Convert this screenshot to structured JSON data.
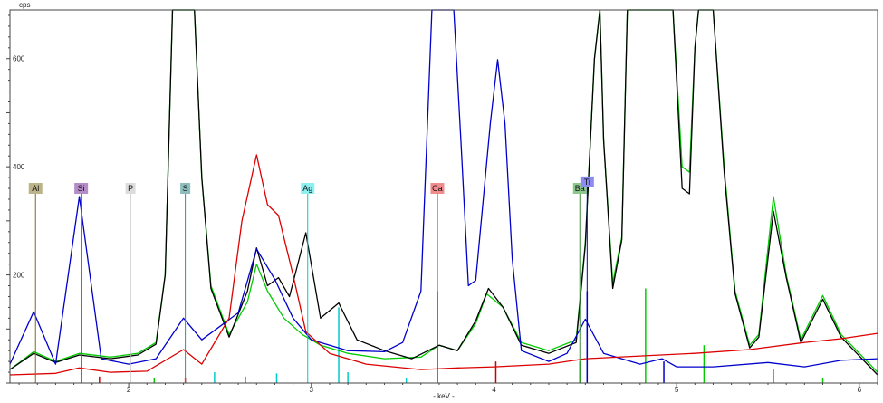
{
  "chart_data": {
    "type": "line",
    "units": {
      "y": "cps",
      "x": "- keV -"
    },
    "xlim": [
      1.35,
      6.1
    ],
    "ylim": [
      0,
      690
    ],
    "x_ticks": [
      {
        "v": 2,
        "t": "2"
      },
      {
        "v": 3,
        "t": "3"
      },
      {
        "v": 4,
        "t": "4"
      },
      {
        "v": 5,
        "t": "5"
      },
      {
        "v": 6,
        "t": "6"
      }
    ],
    "y_ticks": [
      {
        "v": 200,
        "t": "200"
      },
      {
        "v": 400,
        "t": "400"
      },
      {
        "v": 600,
        "t": "600"
      }
    ],
    "series": [
      {
        "color": "#00cc00",
        "points": [
          [
            1.35,
            25
          ],
          [
            1.48,
            58
          ],
          [
            1.6,
            40
          ],
          [
            1.73,
            55
          ],
          [
            1.9,
            48
          ],
          [
            2.05,
            55
          ],
          [
            2.15,
            75
          ],
          [
            2.2,
            200
          ],
          [
            2.24,
            690
          ],
          [
            2.36,
            690
          ],
          [
            2.4,
            380
          ],
          [
            2.45,
            180
          ],
          [
            2.55,
            90
          ],
          [
            2.65,
            150
          ],
          [
            2.7,
            220
          ],
          [
            2.76,
            170
          ],
          [
            2.85,
            120
          ],
          [
            2.95,
            90
          ],
          [
            3.05,
            70
          ],
          [
            3.2,
            55
          ],
          [
            3.4,
            45
          ],
          [
            3.6,
            48
          ],
          [
            3.7,
            70
          ],
          [
            3.8,
            60
          ],
          [
            3.9,
            110
          ],
          [
            3.96,
            165
          ],
          [
            4.05,
            140
          ],
          [
            4.15,
            75
          ],
          [
            4.3,
            60
          ],
          [
            4.45,
            80
          ],
          [
            4.5,
            260
          ],
          [
            4.55,
            600
          ],
          [
            4.58,
            690
          ],
          [
            4.6,
            450
          ],
          [
            4.65,
            185
          ],
          [
            4.7,
            270
          ],
          [
            4.73,
            690
          ],
          [
            4.98,
            690
          ],
          [
            5.03,
            400
          ],
          [
            5.07,
            390
          ],
          [
            5.1,
            620
          ],
          [
            5.12,
            690
          ],
          [
            5.2,
            690
          ],
          [
            5.26,
            400
          ],
          [
            5.32,
            170
          ],
          [
            5.4,
            70
          ],
          [
            5.45,
            90
          ],
          [
            5.53,
            345
          ],
          [
            5.6,
            200
          ],
          [
            5.68,
            80
          ],
          [
            5.8,
            162
          ],
          [
            5.9,
            90
          ],
          [
            6.1,
            20
          ]
        ]
      },
      {
        "color": "#000000",
        "points": [
          [
            1.35,
            25
          ],
          [
            1.48,
            55
          ],
          [
            1.6,
            38
          ],
          [
            1.73,
            52
          ],
          [
            1.9,
            45
          ],
          [
            2.05,
            52
          ],
          [
            2.15,
            72
          ],
          [
            2.2,
            200
          ],
          [
            2.24,
            690
          ],
          [
            2.36,
            690
          ],
          [
            2.4,
            380
          ],
          [
            2.45,
            175
          ],
          [
            2.55,
            85
          ],
          [
            2.65,
            170
          ],
          [
            2.7,
            250
          ],
          [
            2.76,
            180
          ],
          [
            2.82,
            195
          ],
          [
            2.88,
            160
          ],
          [
            2.97,
            278
          ],
          [
            3.05,
            120
          ],
          [
            3.15,
            148
          ],
          [
            3.25,
            80
          ],
          [
            3.4,
            60
          ],
          [
            3.55,
            45
          ],
          [
            3.7,
            70
          ],
          [
            3.8,
            60
          ],
          [
            3.9,
            115
          ],
          [
            3.97,
            175
          ],
          [
            4.05,
            140
          ],
          [
            4.15,
            70
          ],
          [
            4.3,
            55
          ],
          [
            4.45,
            75
          ],
          [
            4.5,
            255
          ],
          [
            4.55,
            600
          ],
          [
            4.58,
            690
          ],
          [
            4.6,
            450
          ],
          [
            4.65,
            175
          ],
          [
            4.7,
            265
          ],
          [
            4.73,
            690
          ],
          [
            4.98,
            690
          ],
          [
            5.03,
            360
          ],
          [
            5.07,
            350
          ],
          [
            5.1,
            620
          ],
          [
            5.12,
            690
          ],
          [
            5.2,
            690
          ],
          [
            5.26,
            390
          ],
          [
            5.32,
            165
          ],
          [
            5.4,
            65
          ],
          [
            5.45,
            85
          ],
          [
            5.53,
            318
          ],
          [
            5.6,
            195
          ],
          [
            5.68,
            75
          ],
          [
            5.8,
            155
          ],
          [
            5.9,
            85
          ],
          [
            6.1,
            15
          ]
        ]
      },
      {
        "color": "#0000cc",
        "points": [
          [
            1.35,
            35
          ],
          [
            1.48,
            132
          ],
          [
            1.6,
            35
          ],
          [
            1.73,
            345
          ],
          [
            1.85,
            45
          ],
          [
            2.0,
            35
          ],
          [
            2.15,
            45
          ],
          [
            2.3,
            120
          ],
          [
            2.4,
            80
          ],
          [
            2.6,
            130
          ],
          [
            2.7,
            248
          ],
          [
            2.8,
            192
          ],
          [
            2.9,
            120
          ],
          [
            3.0,
            80
          ],
          [
            3.2,
            60
          ],
          [
            3.4,
            58
          ],
          [
            3.5,
            75
          ],
          [
            3.6,
            170
          ],
          [
            3.66,
            690
          ],
          [
            3.78,
            690
          ],
          [
            3.82,
            440
          ],
          [
            3.86,
            180
          ],
          [
            3.9,
            190
          ],
          [
            3.98,
            480
          ],
          [
            4.02,
            598
          ],
          [
            4.06,
            480
          ],
          [
            4.1,
            230
          ],
          [
            4.15,
            60
          ],
          [
            4.3,
            40
          ],
          [
            4.4,
            55
          ],
          [
            4.5,
            118
          ],
          [
            4.6,
            55
          ],
          [
            4.8,
            35
          ],
          [
            4.92,
            45
          ],
          [
            5.0,
            30
          ],
          [
            5.2,
            30
          ],
          [
            5.5,
            38
          ],
          [
            5.7,
            30
          ],
          [
            5.9,
            42
          ],
          [
            6.1,
            45
          ]
        ]
      },
      {
        "color": "#dd0000",
        "points": [
          [
            1.35,
            15
          ],
          [
            1.6,
            18
          ],
          [
            1.73,
            28
          ],
          [
            1.9,
            20
          ],
          [
            2.1,
            22
          ],
          [
            2.3,
            62
          ],
          [
            2.4,
            35
          ],
          [
            2.55,
            120
          ],
          [
            2.62,
            300
          ],
          [
            2.7,
            422
          ],
          [
            2.76,
            330
          ],
          [
            2.82,
            310
          ],
          [
            2.9,
            200
          ],
          [
            2.97,
            95
          ],
          [
            3.1,
            55
          ],
          [
            3.3,
            35
          ],
          [
            3.6,
            25
          ],
          [
            3.8,
            28
          ],
          [
            4.0,
            30
          ],
          [
            4.3,
            35
          ],
          [
            4.5,
            45
          ],
          [
            4.8,
            50
          ],
          [
            5.1,
            55
          ],
          [
            5.4,
            62
          ],
          [
            5.7,
            75
          ],
          [
            5.9,
            82
          ],
          [
            6.1,
            92
          ]
        ]
      }
    ],
    "element_markers": [
      {
        "label": "Al",
        "x": 1.49,
        "height": 350,
        "color": "#7a6f1c",
        "bg": "#bdb388"
      },
      {
        "label": "Si",
        "x": 1.74,
        "height": 350,
        "color": "#7a3f8f",
        "bg": "#b48cc8"
      },
      {
        "label": "P",
        "x": 2.01,
        "height": 350,
        "color": "#bbbbbb",
        "bg": "#dcdcdc"
      },
      {
        "label": "S",
        "x": 2.31,
        "height": 350,
        "color": "#3c8c8c",
        "bg": "#8cbcbc"
      },
      {
        "label": "Ag",
        "x": 2.98,
        "height": 350,
        "color": "#00cccc",
        "bg": "#8cf0f0"
      },
      {
        "label": "Ca",
        "x": 3.69,
        "height": 350,
        "color": "#cc0000",
        "bg": "#f08c8c"
      },
      {
        "label": "Ba",
        "x": 4.47,
        "height": 350,
        "color": "#3c8c3c",
        "bg": "#8cc88c"
      },
      {
        "label": "Ti",
        "x": 4.51,
        "height": 362,
        "color": "#0000cc",
        "bg": "#8c8cf0"
      }
    ],
    "line_markers": [
      {
        "x": 1.84,
        "height": 12,
        "color": "#cc0000"
      },
      {
        "x": 2.14,
        "height": 10,
        "color": "#00cc00"
      },
      {
        "x": 2.31,
        "height": 10,
        "color": "#cc0000"
      },
      {
        "x": 2.47,
        "height": 20,
        "color": "#00cccc"
      },
      {
        "x": 2.64,
        "height": 12,
        "color": "#00cccc"
      },
      {
        "x": 2.81,
        "height": 18,
        "color": "#00cccc"
      },
      {
        "x": 3.15,
        "height": 140,
        "color": "#00cccc"
      },
      {
        "x": 3.2,
        "height": 20,
        "color": "#00cccc"
      },
      {
        "x": 3.52,
        "height": 10,
        "color": "#00cccc"
      },
      {
        "x": 3.69,
        "height": 170,
        "color": "#cc0000"
      },
      {
        "x": 4.01,
        "height": 40,
        "color": "#cc0000"
      },
      {
        "x": 4.47,
        "height": 40,
        "color": "#00cc00"
      },
      {
        "x": 4.51,
        "height": 170,
        "color": "#0000cc"
      },
      {
        "x": 4.83,
        "height": 175,
        "color": "#00cc00"
      },
      {
        "x": 4.93,
        "height": 40,
        "color": "#0000cc"
      },
      {
        "x": 5.15,
        "height": 70,
        "color": "#00cc00"
      },
      {
        "x": 5.53,
        "height": 25,
        "color": "#00cc00"
      },
      {
        "x": 5.8,
        "height": 10,
        "color": "#00cc00"
      }
    ]
  }
}
